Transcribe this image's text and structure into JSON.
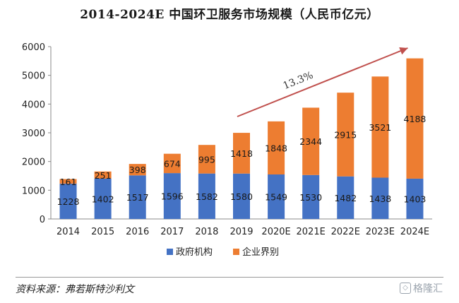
{
  "page": {
    "title": "2014-2024E 中国环卫服务市场规模（人民币亿元）",
    "source": "资料来源：弗若斯特沙利文",
    "watermark": "格隆汇"
  },
  "colors": {
    "government": "#4472c4",
    "enterprise": "#ed7d31",
    "arrow": "#c0504d"
  },
  "chart_data": {
    "type": "bar",
    "stacked": true,
    "title": "2014-2024E 中国环卫服务市场规模（人民币亿元）",
    "xlabel": "",
    "ylabel": "",
    "ylim": [
      0,
      6000
    ],
    "yticks": [
      0,
      1000,
      2000,
      3000,
      4000,
      5000,
      6000
    ],
    "categories": [
      "2014",
      "2015",
      "2016",
      "2017",
      "2018",
      "2019",
      "2020E",
      "2021E",
      "2022E",
      "2023E",
      "2024E"
    ],
    "series": [
      {
        "name": "政府机构",
        "values": [
          1228,
          1402,
          1517,
          1596,
          1582,
          1580,
          1549,
          1530,
          1482,
          1438,
          1403
        ]
      },
      {
        "name": "企业界别",
        "values": [
          161,
          251,
          398,
          674,
          995,
          1418,
          1848,
          2344,
          2915,
          3521,
          4188
        ]
      }
    ],
    "legend_position": "bottom",
    "annotations": [
      {
        "text": "13.3%",
        "type": "growth-arrow",
        "from_category": "2019",
        "to_category": "2024E"
      }
    ]
  }
}
